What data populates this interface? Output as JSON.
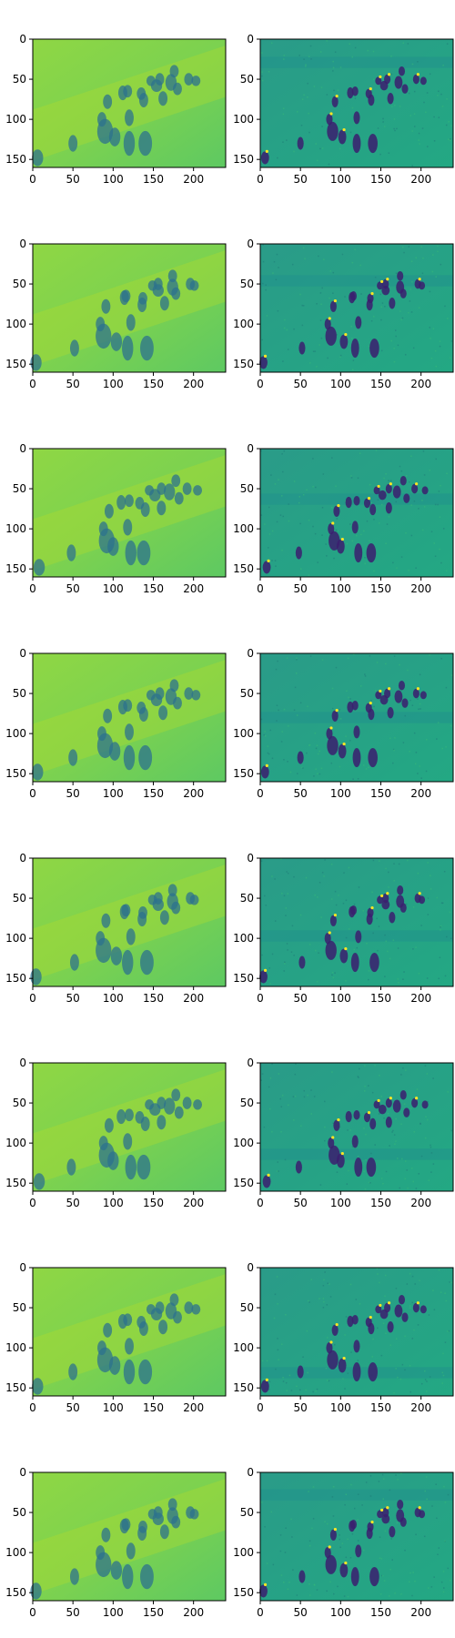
{
  "figure": {
    "rows": 8,
    "cols": 2,
    "colormap": "viridis"
  },
  "chart_data": {
    "type": "heatmap",
    "image_shape": [
      160,
      240
    ],
    "x_ticks": [
      "0",
      "50",
      "100",
      "150",
      "200"
    ],
    "y_ticks": [
      "0",
      "50",
      "100",
      "150"
    ],
    "panels": [
      {
        "row": 1,
        "col": 1,
        "style": "smooth-prediction"
      },
      {
        "row": 1,
        "col": 2,
        "style": "detail-residual"
      },
      {
        "row": 2,
        "col": 1,
        "style": "smooth-prediction"
      },
      {
        "row": 2,
        "col": 2,
        "style": "detail-residual"
      },
      {
        "row": 3,
        "col": 1,
        "style": "smooth-prediction"
      },
      {
        "row": 3,
        "col": 2,
        "style": "detail-residual"
      },
      {
        "row": 4,
        "col": 1,
        "style": "smooth-prediction"
      },
      {
        "row": 4,
        "col": 2,
        "style": "detail-residual"
      },
      {
        "row": 5,
        "col": 1,
        "style": "smooth-prediction"
      },
      {
        "row": 5,
        "col": 2,
        "style": "detail-residual"
      },
      {
        "row": 6,
        "col": 1,
        "style": "smooth-prediction"
      },
      {
        "row": 6,
        "col": 2,
        "style": "detail-residual"
      },
      {
        "row": 7,
        "col": 1,
        "style": "smooth-prediction"
      },
      {
        "row": 7,
        "col": 2,
        "style": "detail-residual"
      },
      {
        "row": 8,
        "col": 1,
        "style": "smooth-prediction"
      },
      {
        "row": 8,
        "col": 2,
        "style": "detail-residual"
      }
    ]
  }
}
